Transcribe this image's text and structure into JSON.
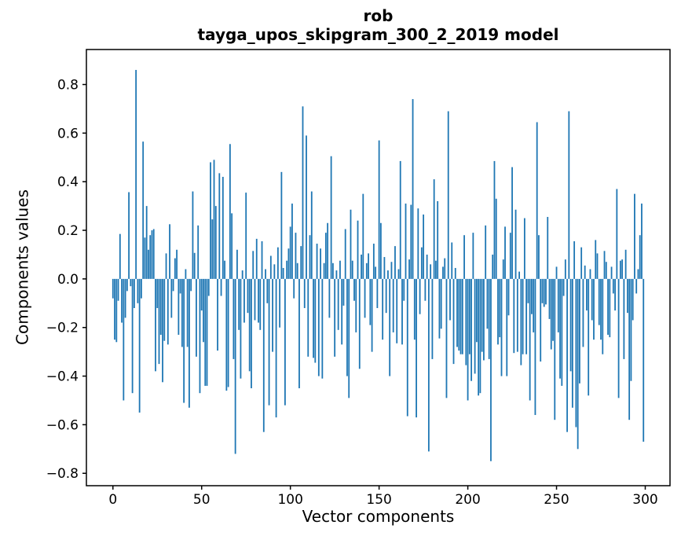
{
  "figure": {
    "title_line1": "rob",
    "title_line2": "tayga_upos_skipgram_300_2_2019 model",
    "xlabel": "Vector components",
    "ylabel": "Components values",
    "background_color": "#ffffff",
    "spine_color": "#000000"
  },
  "chart_data": {
    "type": "bar",
    "title": "rob\ntayga_upos_skipgram_300_2_2019 model",
    "xlabel": "Vector components",
    "ylabel": "Components values",
    "legend": "none",
    "grid": false,
    "bar_color": "#1f77b4",
    "n_bars": 300,
    "xlim": [
      -14.95,
      313.95
    ],
    "ylim": [
      -0.851,
      0.944
    ],
    "x_ticks": [
      0,
      50,
      100,
      150,
      200,
      250,
      300
    ],
    "x_tick_labels": [
      "0",
      "50",
      "100",
      "150",
      "200",
      "250",
      "300"
    ],
    "y_ticks": [
      -0.8,
      -0.6,
      -0.4,
      -0.2,
      0.0,
      0.2,
      0.4,
      0.6,
      0.8
    ],
    "y_tick_labels": [
      "−0.8",
      "−0.6",
      "−0.4",
      "−0.2",
      "0.0",
      "0.2",
      "0.4",
      "0.6",
      "0.8"
    ],
    "values": [
      -0.08,
      -0.25,
      -0.26,
      -0.09,
      0.185,
      -0.18,
      -0.5,
      -0.16,
      -0.05,
      0.357,
      -0.03,
      -0.47,
      -0.12,
      0.86,
      -0.1,
      -0.55,
      -0.08,
      0.565,
      0.17,
      0.3,
      0.12,
      0.18,
      0.2,
      0.205,
      -0.38,
      -0.12,
      -0.35,
      -0.23,
      -0.425,
      -0.255,
      0.105,
      -0.27,
      0.225,
      -0.16,
      -0.05,
      0.085,
      0.12,
      -0.23,
      -0.06,
      -0.28,
      -0.51,
      0.04,
      -0.28,
      -0.53,
      -0.05,
      0.36,
      0.107,
      -0.32,
      0.22,
      -0.47,
      -0.13,
      -0.26,
      -0.44,
      -0.44,
      -0.07,
      0.48,
      0.245,
      0.49,
      0.3,
      -0.295,
      0.435,
      -0.07,
      0.42,
      0.075,
      -0.46,
      -0.445,
      0.555,
      0.27,
      -0.33,
      -0.72,
      0.12,
      -0.21,
      -0.41,
      0.035,
      -0.18,
      0.355,
      -0.14,
      -0.38,
      -0.45,
      0.115,
      -0.17,
      0.165,
      -0.18,
      -0.21,
      0.155,
      -0.63,
      0.04,
      -0.1,
      -0.52,
      0.095,
      -0.3,
      0.06,
      -0.57,
      0.13,
      -0.2,
      0.44,
      0.045,
      -0.52,
      0.075,
      0.125,
      0.215,
      0.31,
      -0.08,
      0.19,
      0.065,
      -0.45,
      0.135,
      0.71,
      -0.12,
      0.59,
      -0.32,
      0.18,
      0.36,
      -0.325,
      -0.345,
      0.145,
      -0.4,
      0.125,
      -0.41,
      0.065,
      0.19,
      0.23,
      -0.16,
      0.505,
      0.065,
      -0.32,
      0.035,
      -0.21,
      0.075,
      -0.27,
      -0.11,
      0.205,
      -0.4,
      -0.49,
      0.285,
      0.075,
      -0.09,
      -0.22,
      0.24,
      -0.37,
      0.1,
      0.35,
      -0.16,
      0.065,
      0.105,
      -0.19,
      -0.3,
      0.145,
      0.05,
      -0.12,
      0.57,
      0.23,
      -0.25,
      0.09,
      -0.14,
      0.035,
      -0.4,
      0.07,
      -0.22,
      0.135,
      -0.265,
      0.04,
      0.485,
      -0.27,
      -0.09,
      0.31,
      -0.565,
      0.08,
      0.305,
      0.74,
      -0.25,
      -0.57,
      0.29,
      -0.145,
      0.13,
      0.265,
      -0.09,
      0.1,
      -0.71,
      0.06,
      -0.33,
      0.41,
      0.075,
      0.32,
      -0.245,
      -0.205,
      0.05,
      0.085,
      -0.49,
      0.69,
      -0.17,
      0.15,
      -0.35,
      0.045,
      -0.28,
      -0.295,
      -0.31,
      -0.31,
      0.18,
      -0.355,
      -0.5,
      -0.31,
      -0.42,
      0.19,
      -0.39,
      -0.26,
      -0.48,
      -0.47,
      -0.3,
      -0.335,
      0.22,
      -0.205,
      -0.33,
      -0.75,
      0.1,
      0.485,
      0.33,
      -0.27,
      -0.24,
      -0.4,
      0.08,
      0.215,
      -0.4,
      -0.15,
      0.19,
      0.46,
      -0.305,
      0.285,
      -0.3,
      0.03,
      -0.355,
      -0.31,
      0.25,
      -0.31,
      -0.1,
      -0.5,
      -0.145,
      -0.22,
      -0.56,
      0.645,
      0.18,
      -0.34,
      -0.1,
      -0.115,
      -0.105,
      0.255,
      -0.165,
      -0.29,
      -0.255,
      -0.58,
      0.05,
      -0.22,
      -0.41,
      -0.44,
      -0.07,
      0.08,
      -0.63,
      0.69,
      -0.38,
      -0.53,
      0.155,
      -0.61,
      -0.7,
      -0.43,
      0.13,
      -0.28,
      0.055,
      -0.13,
      -0.48,
      0.04,
      -0.17,
      -0.25,
      0.16,
      0.105,
      -0.19,
      -0.25,
      -0.31,
      0.115,
      0.07,
      -0.23,
      -0.24,
      0.05,
      -0.06,
      -0.13,
      0.37,
      -0.49,
      0.075,
      0.08,
      -0.33,
      0.12,
      -0.14,
      -0.58,
      -0.42,
      -0.17,
      0.35,
      -0.06,
      0.04,
      0.18,
      0.31,
      -0.67
    ]
  }
}
